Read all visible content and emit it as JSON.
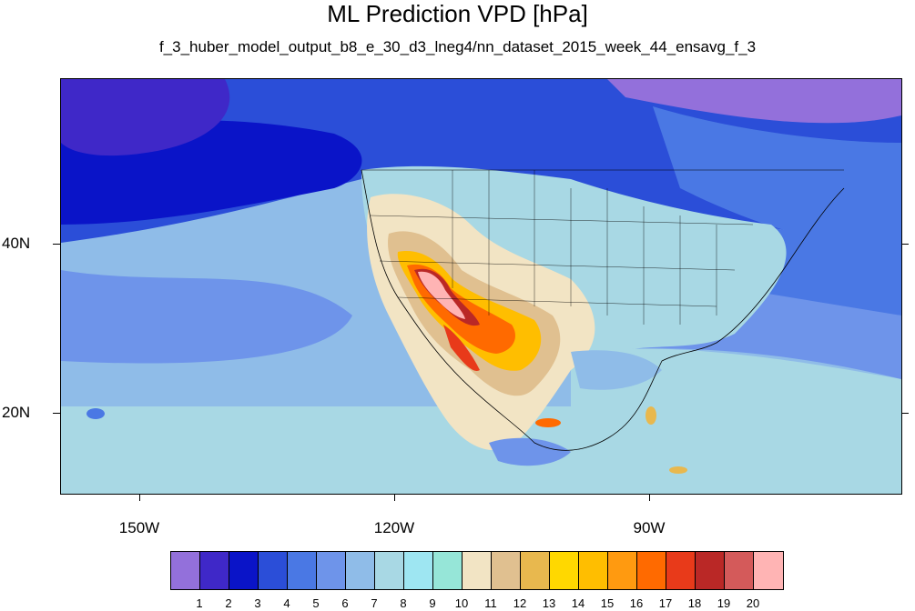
{
  "title": "ML Prediction VPD [hPa]",
  "subtitle": "f_3_huber_model_output_b8_e_30_d3_lneg4/nn_dataset_2015_week_44_ensavg_f_3",
  "lat_labels": [
    "40N",
    "20N"
  ],
  "lon_labels": [
    "150W",
    "120W",
    "90W"
  ],
  "colorbar": {
    "labels": [
      "1",
      "2",
      "3",
      "4",
      "5",
      "6",
      "7",
      "8",
      "9",
      "10",
      "11",
      "12",
      "13",
      "14",
      "15",
      "16",
      "17",
      "18",
      "19",
      "20"
    ],
    "colors": [
      "#9370db",
      "#3f28c8",
      "#0a14c8",
      "#2b4ed8",
      "#4a78e4",
      "#6e94ea",
      "#8fbce8",
      "#a8d8e4",
      "#9ee6f2",
      "#96e6d8",
      "#f2e4c4",
      "#e0c090",
      "#e8b84e",
      "#ffd800",
      "#ffbe00",
      "#ff9a10",
      "#ff6a00",
      "#e83a1a",
      "#ba2826",
      "#d45a5a",
      "#ffb4b4"
    ]
  }
}
